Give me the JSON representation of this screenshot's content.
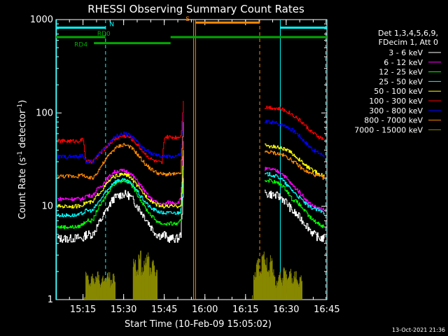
{
  "chart_data": {
    "type": "line",
    "title": "RHESSI Observing Summary Count Rates",
    "xlabel": "Start Time (10-Feb-09 15:05:02)",
    "ylabel": "Count Rate (s-1 detector-1)",
    "ylabel_parts": [
      "Count Rate (s",
      "-1",
      " detector",
      "-1",
      ")"
    ],
    "y_scale": "log",
    "ylim": [
      1,
      1000
    ],
    "x_units": "minutes since 15:05:02",
    "xlim": [
      0,
      100
    ],
    "x_ticks": [
      {
        "value": 9.97,
        "label": "15:15"
      },
      {
        "value": 24.97,
        "label": "15:30"
      },
      {
        "value": 39.97,
        "label": "15:45"
      },
      {
        "value": 54.97,
        "label": "16:00"
      },
      {
        "value": 69.97,
        "label": "16:15"
      },
      {
        "value": 84.97,
        "label": "16:30"
      },
      {
        "value": 99.97,
        "label": "16:45"
      }
    ],
    "y_ticks": [
      {
        "value": 1,
        "label": "1"
      },
      {
        "value": 10,
        "label": "10"
      },
      {
        "value": 100,
        "label": "100"
      },
      {
        "value": 1000,
        "label": "1000"
      }
    ],
    "grid": false,
    "legend_header": [
      "Det 1,3,4,5,6,9,",
      "FDecim 1, Att 0"
    ],
    "legend_position": "right",
    "series": [
      {
        "name": "3 - 6 keV",
        "color": "#ffffff",
        "x": [
          0.5,
          2,
          4,
          6,
          8,
          10,
          11,
          13.5,
          15,
          17,
          19,
          21,
          23,
          25,
          27,
          29,
          31,
          33,
          35,
          37,
          39,
          40,
          41,
          43,
          45,
          46,
          46.5,
          47,
          77,
          79,
          81,
          83,
          85,
          87,
          89,
          91,
          93,
          95,
          97,
          99
        ],
        "y": [
          4.5,
          4.5,
          4.5,
          4.5,
          4.6,
          4.5,
          5,
          5,
          6,
          7.5,
          9.5,
          12,
          13,
          13.5,
          13,
          11,
          9,
          7.5,
          6,
          5,
          4.8,
          5,
          4.5,
          4.5,
          4.5,
          5,
          9,
          20,
          13.5,
          13.5,
          13,
          12.5,
          11,
          9,
          8,
          7,
          6,
          5,
          4.6,
          4.5
        ]
      },
      {
        "name": "6 - 12 keV",
        "color": "#ff00ff",
        "x": [
          0.5,
          2,
          4,
          6,
          8,
          10,
          11,
          13.5,
          15,
          17,
          19,
          21,
          23,
          25,
          27,
          29,
          31,
          33,
          35,
          37,
          39,
          40,
          41,
          43,
          45,
          46,
          46.5,
          47,
          77,
          79,
          81,
          83,
          85,
          87,
          89,
          91,
          93,
          95,
          97,
          99
        ],
        "y": [
          12,
          12,
          12,
          12,
          12,
          12,
          13,
          13,
          15,
          17,
          20,
          23,
          24,
          24,
          23,
          20,
          17,
          14,
          12,
          11,
          10.5,
          10.5,
          11,
          11,
          11,
          12,
          22,
          50,
          25,
          25,
          24,
          23,
          20,
          17,
          15,
          13,
          11,
          10,
          9.5,
          9
        ]
      },
      {
        "name": "12 - 25 keV",
        "color": "#00ff00",
        "x": [
          0.5,
          2,
          4,
          6,
          8,
          10,
          11,
          13.5,
          15,
          17,
          19,
          21,
          23,
          25,
          27,
          29,
          31,
          33,
          35,
          37,
          39,
          40,
          41,
          43,
          45,
          46,
          46.5,
          47,
          77,
          79,
          81,
          83,
          85,
          87,
          89,
          91,
          93,
          95,
          97,
          99
        ],
        "y": [
          6,
          6,
          6,
          6,
          6,
          6.5,
          7,
          7,
          9,
          11,
          14,
          17,
          18.5,
          19,
          18,
          15,
          12,
          9.5,
          8,
          7,
          6.5,
          6.5,
          6.5,
          6.5,
          6.5,
          7,
          14,
          30,
          19,
          19,
          18,
          17,
          15,
          12,
          11,
          9.5,
          8,
          7,
          6.5,
          6
        ]
      },
      {
        "name": "25 - 50 keV",
        "color": "#00ffff",
        "x": [
          0.5,
          2,
          4,
          6,
          8,
          10,
          11,
          13.5,
          15,
          17,
          19,
          21,
          23,
          25,
          27,
          29,
          31,
          33,
          35,
          37,
          39,
          40,
          41,
          43,
          45,
          46,
          46.5,
          47,
          77,
          79,
          81,
          83,
          85,
          87,
          89,
          91,
          93,
          95,
          97,
          99
        ],
        "y": [
          8,
          8,
          8,
          8,
          8,
          8.5,
          9,
          9,
          10.5,
          12.5,
          15,
          18,
          19,
          19,
          18,
          16,
          13,
          11,
          9.5,
          9,
          8.5,
          8.5,
          8.5,
          8.5,
          8.5,
          9,
          16,
          35,
          22,
          22,
          21,
          20,
          17,
          15,
          13,
          11.5,
          10,
          9.5,
          9,
          8.5
        ]
      },
      {
        "name": "50 - 100 keV",
        "color": "#ffff00",
        "x": [
          0.5,
          2,
          4,
          6,
          8,
          10,
          11,
          13.5,
          15,
          17,
          19,
          21,
          23,
          25,
          27,
          29,
          31,
          33,
          35,
          37,
          39,
          40,
          41,
          43,
          45,
          46,
          46.5,
          47,
          77,
          79,
          81,
          83,
          85,
          87,
          89,
          91,
          93,
          95,
          97,
          99
        ],
        "y": [
          10,
          10,
          10,
          10,
          10,
          10.5,
          11,
          11,
          13,
          15,
          18,
          20.5,
          21.5,
          22,
          21,
          18,
          15,
          13,
          11.5,
          10.5,
          10,
          10,
          10,
          10,
          10,
          10.5,
          18,
          40,
          45,
          44,
          43,
          42,
          40,
          37,
          33,
          29,
          26,
          24,
          22,
          21
        ]
      },
      {
        "name": "100 - 300 keV",
        "color": "#ff0000",
        "x": [
          0.5,
          2,
          4,
          6,
          8,
          10,
          11,
          13.5,
          15,
          17,
          19,
          21,
          23,
          25,
          27,
          29,
          31,
          33,
          35,
          37,
          39,
          40,
          41,
          43,
          45,
          46,
          46.5,
          47,
          77,
          79,
          81,
          83,
          85,
          87,
          89,
          91,
          93,
          95,
          97,
          99
        ],
        "y": [
          50,
          50,
          50,
          50,
          50,
          52,
          30,
          30,
          34,
          39,
          45,
          51,
          55,
          57,
          55,
          49,
          42,
          36,
          32,
          30,
          29,
          55,
          55,
          55,
          55,
          57,
          80,
          135,
          115,
          115,
          112,
          110,
          105,
          97,
          88,
          78,
          68,
          60,
          55,
          52
        ]
      },
      {
        "name": "300 - 800 keV",
        "color": "#0000ff",
        "x": [
          0.5,
          2,
          4,
          6,
          8,
          10,
          11,
          13.5,
          15,
          17,
          19,
          21,
          23,
          25,
          27,
          29,
          31,
          33,
          35,
          37,
          39,
          40,
          41,
          43,
          45,
          46,
          46.5,
          47,
          77,
          79,
          81,
          83,
          85,
          87,
          89,
          91,
          93,
          95,
          97,
          99
        ],
        "y": [
          34,
          34,
          34,
          34,
          34,
          35,
          30,
          30,
          34,
          40,
          46,
          53,
          58,
          60,
          58,
          52,
          45,
          40,
          37,
          35,
          34,
          34,
          34,
          34,
          35,
          36,
          60,
          100,
          80,
          80,
          78,
          75,
          72,
          66,
          60,
          52,
          45,
          40,
          37,
          35
        ]
      },
      {
        "name": "800 - 7000 keV",
        "color": "#ff8800",
        "x": [
          0.5,
          2,
          4,
          6,
          8,
          10,
          11,
          13.5,
          15,
          17,
          19,
          21,
          23,
          25,
          27,
          29,
          31,
          33,
          35,
          37,
          39,
          40,
          41,
          43,
          45,
          46,
          46.5,
          47,
          77,
          79,
          81,
          83,
          85,
          87,
          89,
          91,
          93,
          95,
          97,
          99
        ],
        "y": [
          21,
          21,
          21,
          21,
          21,
          22,
          20,
          20,
          23,
          28,
          34,
          40,
          44,
          46,
          44,
          39,
          33,
          28,
          25,
          23,
          22,
          22,
          22,
          22,
          22,
          23,
          40,
          80,
          38,
          38,
          37,
          36,
          34,
          31,
          28,
          25,
          23,
          22,
          21,
          20
        ]
      },
      {
        "name": "7000 - 15000 keV",
        "color": "#888800",
        "x": [
          27.5,
          28,
          29,
          30,
          31,
          32,
          33,
          34,
          35,
          36,
          37,
          38,
          39,
          40,
          41,
          42,
          43,
          44,
          45,
          46,
          47,
          48,
          49,
          50,
          51,
          52,
          53,
          54,
          55,
          56,
          57,
          58,
          59,
          60,
          61,
          62,
          63,
          64,
          65,
          66,
          67,
          68,
          69,
          70,
          71,
          72,
          73,
          74,
          75,
          76
        ],
        "y": [
          1,
          1,
          1,
          1,
          1,
          1,
          1,
          1,
          1,
          1,
          1,
          1,
          1,
          1,
          1,
          1,
          1,
          1,
          1,
          1,
          1,
          1,
          1,
          1,
          1,
          1,
          1,
          1,
          1,
          1,
          1,
          1,
          1,
          1,
          1,
          1,
          1,
          1,
          1,
          1,
          1,
          1,
          1,
          1,
          1,
          1,
          1,
          1,
          1,
          1
        ]
      }
    ],
    "series_7000_15000_segments": [
      {
        "x": [
          27.5,
          28.5,
          29.5,
          30.5,
          31.5,
          32.5,
          33.5,
          34.5,
          35.5,
          36.5,
          37.5
        ],
        "y": [
          1,
          2.5,
          2,
          3,
          2,
          2.5,
          3,
          2,
          2.5,
          2,
          1
        ]
      },
      {
        "x": [
          10.5,
          11,
          12,
          13,
          14,
          15,
          16,
          17,
          18,
          19,
          20,
          21,
          22
        ],
        "y": [
          1,
          1.8,
          1.5,
          1.7,
          1.6,
          1.8,
          1.5,
          1.7,
          1.6,
          1.8,
          1.5,
          1.7,
          1
        ]
      },
      {
        "x": [
          72.5,
          73,
          74,
          75,
          76,
          77,
          78,
          79,
          80,
          81
        ],
        "y": [
          1,
          1.8,
          2.5,
          2,
          3,
          2.5,
          2,
          2.8,
          2,
          1
        ]
      },
      {
        "x": [
          80,
          81,
          82,
          83,
          84,
          85,
          86,
          87,
          88,
          89,
          90,
          91
        ],
        "y": [
          1,
          1.5,
          1.8,
          1.6,
          2,
          1.7,
          1.9,
          1.6,
          1.8,
          1.5,
          1.7,
          1
        ]
      }
    ],
    "attenuator_state_markers": [
      {
        "label": "N",
        "color": "#00ffff",
        "segments": [
          {
            "x0": 0,
            "x1": 18.2,
            "y": 820
          },
          {
            "x0": 82.8,
            "x1": 100,
            "y": 820
          }
        ]
      },
      {
        "label": "RD0",
        "color": "#00aa00",
        "segments": [
          {
            "x0": 0,
            "x1": 18.3,
            "y": 650
          }
        ]
      },
      {
        "label": "RD4",
        "color": "#00aa00",
        "segments": [
          {
            "x0": 14,
            "x1": 42.3,
            "y": 560
          }
        ]
      },
      {
        "label": "",
        "color": "#00aa00",
        "segments": [
          {
            "x0": 42.3,
            "x1": 100,
            "y": 650
          }
        ]
      },
      {
        "label": "S",
        "color": "#ff8800",
        "segments": [
          {
            "x0": 51.5,
            "x1": 75.2,
            "y": 930
          }
        ]
      }
    ],
    "vertical_lines": [
      {
        "x": 0.2,
        "color": "#00ffff",
        "style": "solid"
      },
      {
        "x": 18.3,
        "color": "#00ffff",
        "style": "dashed"
      },
      {
        "x": 50.8,
        "color": "#ff8800",
        "style": "solid"
      },
      {
        "x": 51.5,
        "color": "#ff8800",
        "style": "solid"
      },
      {
        "x": 75.2,
        "color": "#ff8800",
        "style": "dashed"
      },
      {
        "x": 82.8,
        "color": "#00ffff",
        "style": "solid"
      },
      {
        "x": 99.6,
        "color": "#00ffff",
        "style": "dashed"
      }
    ],
    "timestamp": "13-Oct-2021 21:36"
  }
}
